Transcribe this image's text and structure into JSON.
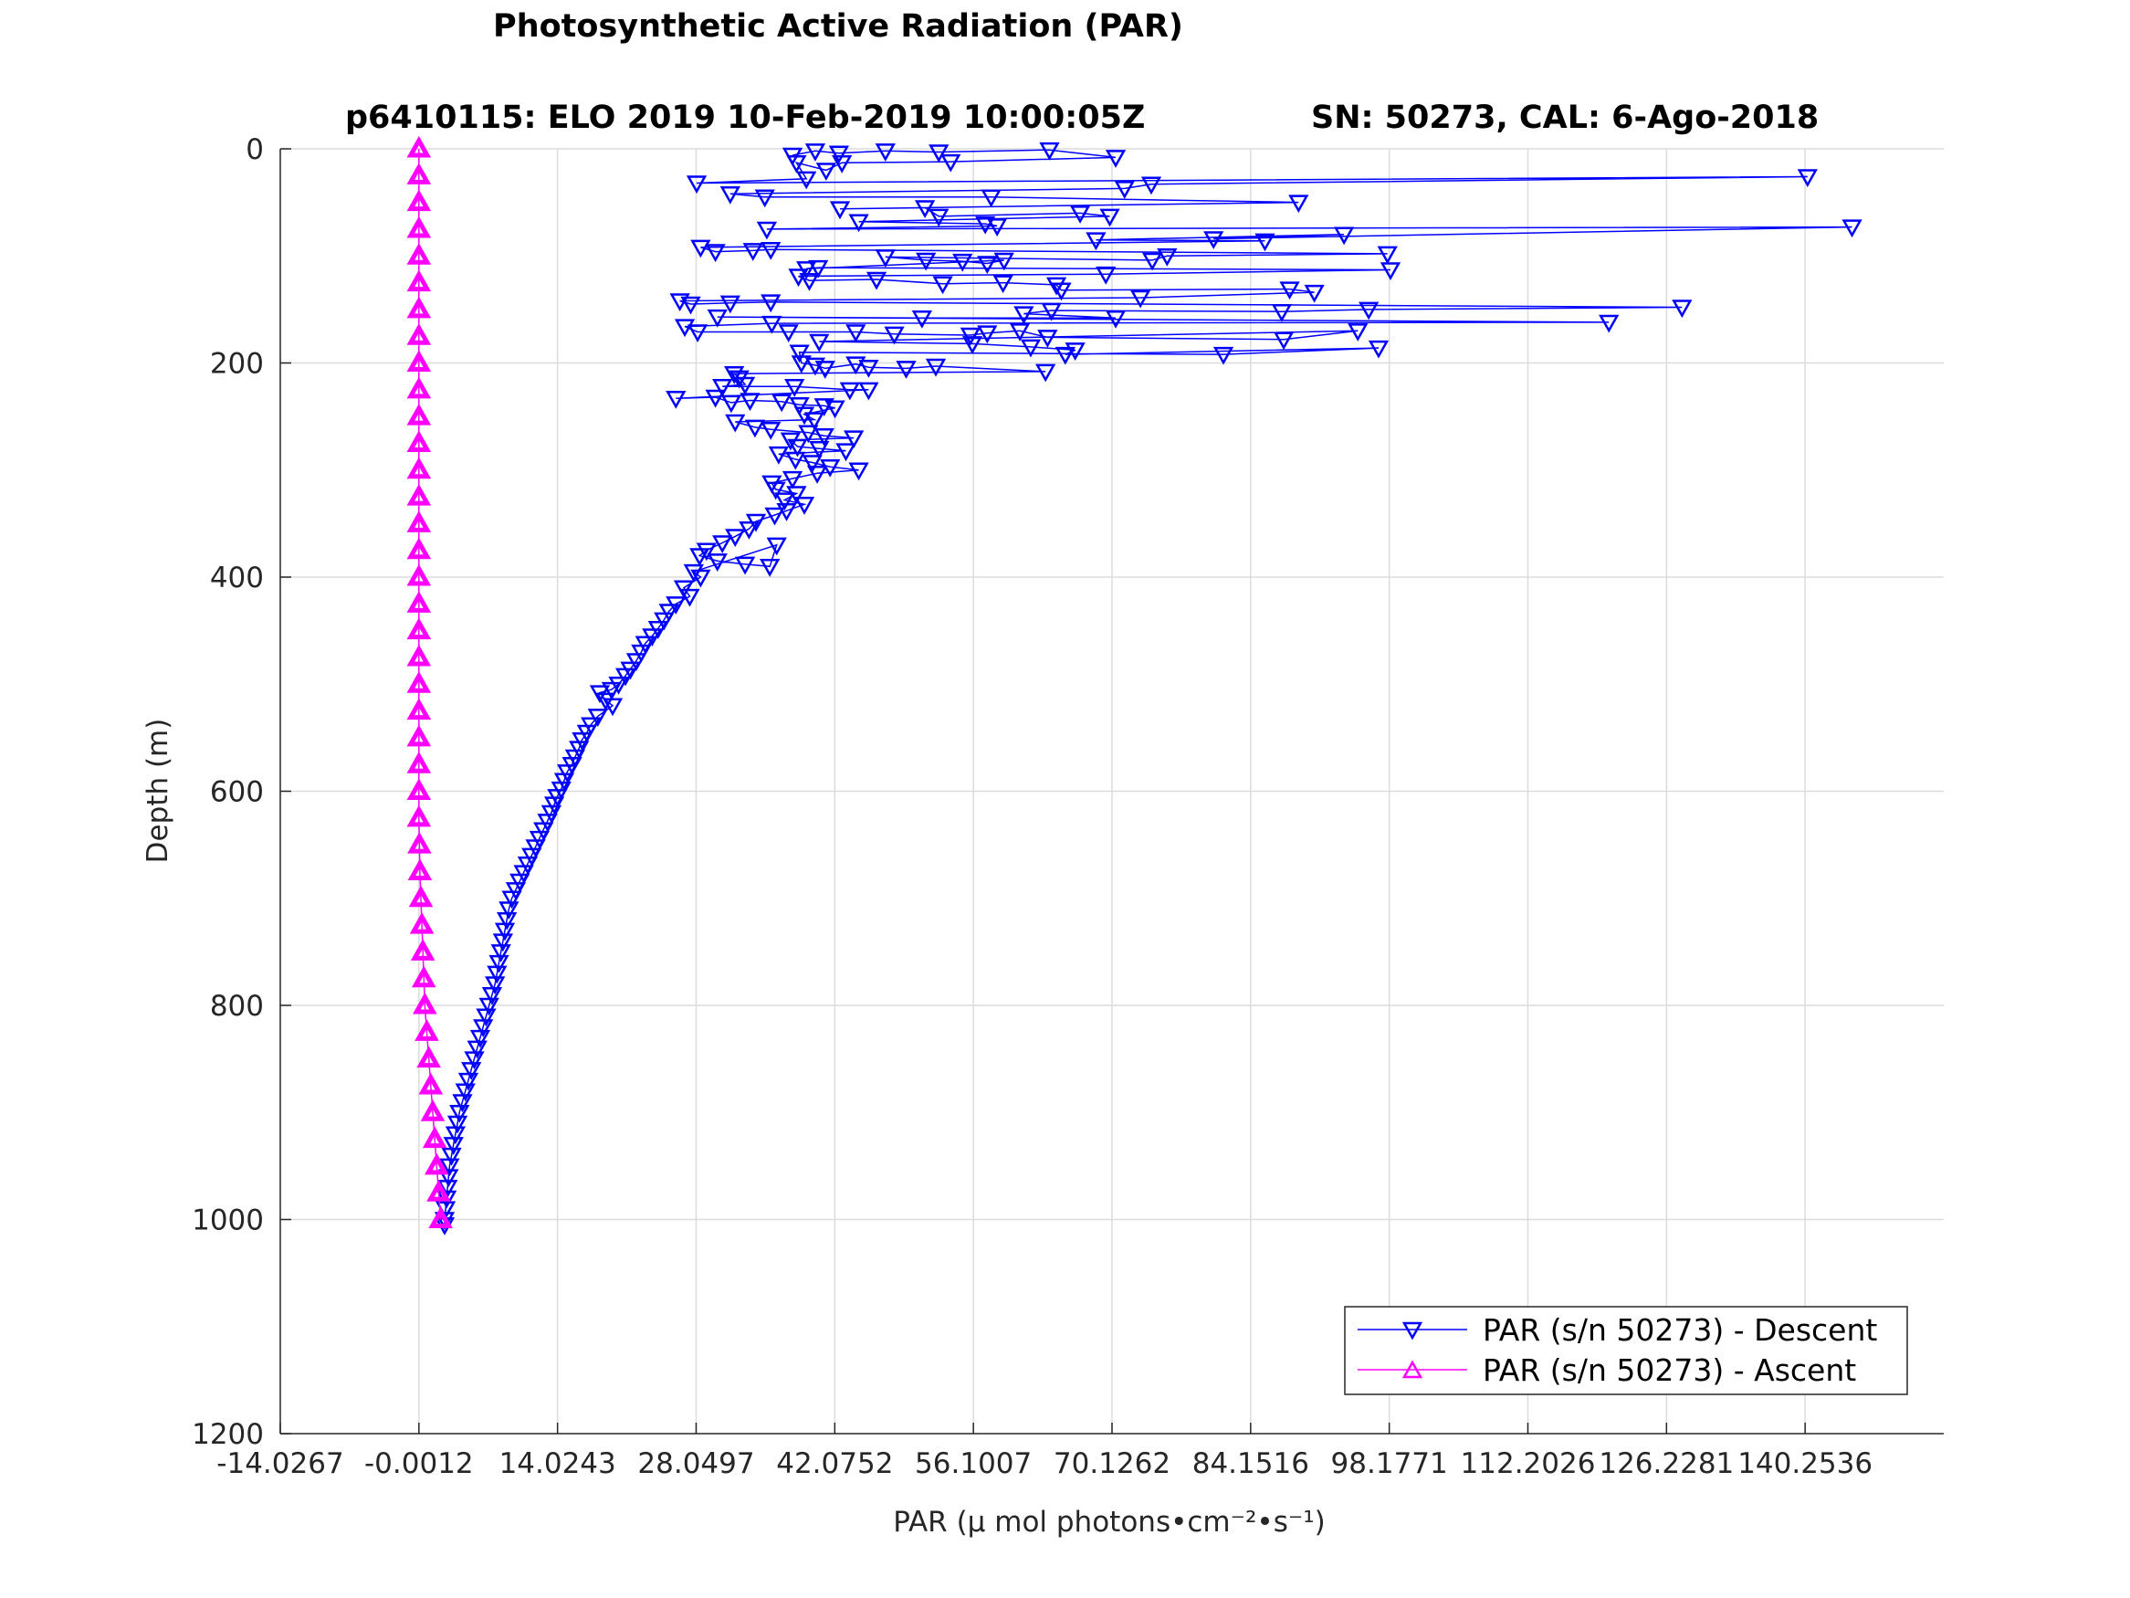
{
  "chart_data": {
    "type": "line",
    "title": "Photosynthetic Active Radiation (PAR)",
    "subtitle_left": "p6410115: ELO 2019 10-Feb-2019 10:00:05Z",
    "subtitle_right": "SN: 50273, CAL: 6-Ago-2018",
    "xlabel": "PAR (μ mol photons•cm⁻²•s⁻¹)",
    "ylabel": "Depth (m)",
    "xlim": [
      -14.0267,
      154.28
    ],
    "ylim": [
      0,
      1200
    ],
    "y_reversed": true,
    "grid": true,
    "x_ticks": [
      "-14.0267",
      "-0.0012",
      "14.0243",
      "28.0497",
      "42.0752",
      "56.1007",
      "70.1262",
      "84.1516",
      "98.1771",
      "112.2026",
      "126.2281",
      "140.2536"
    ],
    "y_ticks": [
      "0",
      "200",
      "400",
      "600",
      "800",
      "1000",
      "1200"
    ],
    "legend_position": "bottom-right",
    "series": [
      {
        "name": "PAR (s/n 50273) - Descent",
        "color": "#0000ff",
        "marker": "triangle-down",
        "points": [
          [
            37.8,
            6
          ],
          [
            40.1,
            2
          ],
          [
            42.5,
            4
          ],
          [
            47.2,
            2
          ],
          [
            52.6,
            3
          ],
          [
            63.8,
            1
          ],
          [
            70.5,
            8
          ],
          [
            53.8,
            12
          ],
          [
            42.8,
            13
          ],
          [
            41.2,
            20
          ],
          [
            38.2,
            13
          ],
          [
            39.2,
            28
          ],
          [
            28.1,
            32
          ],
          [
            140.5,
            26
          ],
          [
            74.1,
            33
          ],
          [
            71.4,
            37
          ],
          [
            31.5,
            42
          ],
          [
            35.0,
            45
          ],
          [
            57.9,
            45
          ],
          [
            89.0,
            50
          ],
          [
            42.6,
            56
          ],
          [
            51.2,
            55
          ],
          [
            52.6,
            63
          ],
          [
            66.9,
            60
          ],
          [
            69.9,
            63
          ],
          [
            44.5,
            68
          ],
          [
            57.3,
            70
          ],
          [
            58.5,
            72
          ],
          [
            35.2,
            75
          ],
          [
            145.0,
            73
          ],
          [
            80.4,
            84
          ],
          [
            93.6,
            80
          ],
          [
            68.5,
            85
          ],
          [
            85.6,
            86
          ],
          [
            28.5,
            92
          ],
          [
            30.0,
            96
          ],
          [
            33.8,
            95
          ],
          [
            35.6,
            94
          ],
          [
            98.0,
            98
          ],
          [
            75.7,
            100
          ],
          [
            74.2,
            104
          ],
          [
            47.2,
            101
          ],
          [
            51.3,
            104
          ],
          [
            55.0,
            105
          ],
          [
            57.5,
            107
          ],
          [
            59.2,
            104
          ],
          [
            39.2,
            112
          ],
          [
            40.4,
            111
          ],
          [
            98.3,
            113
          ],
          [
            69.5,
            117
          ],
          [
            38.4,
            119
          ],
          [
            39.5,
            123
          ],
          [
            46.3,
            122
          ],
          [
            53.0,
            126
          ],
          [
            59.1,
            125
          ],
          [
            64.5,
            127
          ],
          [
            65.0,
            132
          ],
          [
            88.1,
            131
          ],
          [
            90.6,
            134
          ],
          [
            73.0,
            139
          ],
          [
            26.4,
            142
          ],
          [
            27.5,
            145
          ],
          [
            31.5,
            144
          ],
          [
            35.6,
            143
          ],
          [
            127.8,
            148
          ],
          [
            96.1,
            150
          ],
          [
            87.3,
            152
          ],
          [
            64.0,
            151
          ],
          [
            61.2,
            154
          ],
          [
            70.5,
            158
          ],
          [
            50.9,
            158
          ],
          [
            30.2,
            157
          ],
          [
            120.4,
            162
          ],
          [
            35.7,
            163
          ],
          [
            26.9,
            166
          ],
          [
            28.2,
            171
          ],
          [
            37.4,
            171
          ],
          [
            44.2,
            171
          ],
          [
            48.1,
            173
          ],
          [
            55.8,
            174
          ],
          [
            57.5,
            172
          ],
          [
            60.8,
            170
          ],
          [
            63.6,
            176
          ],
          [
            87.5,
            178
          ],
          [
            95.0,
            170
          ],
          [
            40.5,
            180
          ],
          [
            56.0,
            182
          ],
          [
            61.9,
            185
          ],
          [
            66.4,
            188
          ],
          [
            65.4,
            192
          ],
          [
            97.1,
            186
          ],
          [
            81.4,
            192
          ],
          [
            38.5,
            190
          ],
          [
            38.7,
            200
          ],
          [
            40.1,
            202
          ],
          [
            41.1,
            205
          ],
          [
            44.2,
            201
          ],
          [
            45.5,
            204
          ],
          [
            49.3,
            205
          ],
          [
            52.3,
            203
          ],
          [
            63.4,
            208
          ],
          [
            31.9,
            210
          ],
          [
            32.4,
            214
          ],
          [
            33.0,
            220
          ],
          [
            30.7,
            222
          ],
          [
            38.0,
            222
          ],
          [
            43.6,
            225
          ],
          [
            45.5,
            225
          ],
          [
            26.0,
            233
          ],
          [
            30.0,
            232
          ],
          [
            31.6,
            237
          ],
          [
            33.5,
            235
          ],
          [
            36.7,
            236
          ],
          [
            38.5,
            239
          ],
          [
            41.0,
            240
          ],
          [
            42.1,
            242
          ],
          [
            39.0,
            248
          ],
          [
            40.0,
            253
          ],
          [
            32.0,
            255
          ],
          [
            34.0,
            260
          ],
          [
            35.6,
            262
          ],
          [
            39.4,
            265
          ],
          [
            41.0,
            268
          ],
          [
            44.0,
            270
          ],
          [
            37.6,
            272
          ],
          [
            38.3,
            278
          ],
          [
            40.5,
            280
          ],
          [
            43.2,
            282
          ],
          [
            36.4,
            285
          ],
          [
            38.1,
            290
          ],
          [
            39.8,
            293
          ],
          [
            41.6,
            297
          ],
          [
            44.5,
            300
          ],
          [
            40.3,
            303
          ],
          [
            37.8,
            308
          ],
          [
            35.7,
            312
          ],
          [
            36.1,
            318
          ],
          [
            38.2,
            322
          ],
          [
            37.0,
            328
          ],
          [
            39.0,
            332
          ],
          [
            37.2,
            338
          ],
          [
            36.0,
            342
          ],
          [
            34.1,
            348
          ],
          [
            33.4,
            355
          ],
          [
            32.0,
            362
          ],
          [
            30.7,
            368
          ],
          [
            29.1,
            375
          ],
          [
            28.4,
            380
          ],
          [
            30.2,
            385
          ],
          [
            33.0,
            388
          ],
          [
            35.5,
            390
          ],
          [
            36.2,
            370
          ],
          [
            27.8,
            395
          ],
          [
            28.5,
            400
          ],
          [
            26.8,
            410
          ],
          [
            27.4,
            418
          ],
          [
            26.0,
            425
          ],
          [
            25.3,
            432
          ],
          [
            24.8,
            440
          ],
          [
            24.2,
            448
          ],
          [
            23.6,
            455
          ],
          [
            22.9,
            462
          ],
          [
            22.5,
            470
          ],
          [
            22.0,
            478
          ],
          [
            21.4,
            486
          ],
          [
            20.9,
            492
          ],
          [
            20.2,
            500
          ],
          [
            19.5,
            505
          ],
          [
            18.3,
            508
          ],
          [
            18.9,
            515
          ],
          [
            19.6,
            520
          ],
          [
            18.1,
            530
          ],
          [
            17.4,
            538
          ],
          [
            17.0,
            545
          ],
          [
            16.5,
            552
          ],
          [
            16.2,
            560
          ],
          [
            15.8,
            568
          ],
          [
            15.5,
            575
          ],
          [
            15.0,
            582
          ],
          [
            14.7,
            590
          ],
          [
            14.4,
            598
          ],
          [
            14.0,
            605
          ],
          [
            13.7,
            612
          ],
          [
            13.4,
            620
          ],
          [
            13.0,
            628
          ],
          [
            12.6,
            636
          ],
          [
            12.2,
            644
          ],
          [
            11.8,
            652
          ],
          [
            11.4,
            660
          ],
          [
            11.0,
            668
          ],
          [
            10.6,
            676
          ],
          [
            10.2,
            684
          ],
          [
            9.8,
            692
          ],
          [
            9.4,
            700
          ],
          [
            9.1,
            710
          ],
          [
            8.9,
            720
          ],
          [
            8.7,
            730
          ],
          [
            8.5,
            740
          ],
          [
            8.3,
            750
          ],
          [
            8.1,
            760
          ],
          [
            7.9,
            770
          ],
          [
            7.7,
            780
          ],
          [
            7.4,
            790
          ],
          [
            7.1,
            800
          ],
          [
            6.8,
            810
          ],
          [
            6.5,
            820
          ],
          [
            6.2,
            830
          ],
          [
            5.9,
            840
          ],
          [
            5.6,
            850
          ],
          [
            5.3,
            860
          ],
          [
            5.0,
            870
          ],
          [
            4.7,
            880
          ],
          [
            4.4,
            890
          ],
          [
            4.1,
            900
          ],
          [
            3.9,
            910
          ],
          [
            3.7,
            920
          ],
          [
            3.5,
            930
          ],
          [
            3.3,
            940
          ],
          [
            3.1,
            950
          ],
          [
            3.0,
            960
          ],
          [
            2.9,
            970
          ],
          [
            2.8,
            980
          ],
          [
            2.7,
            990
          ],
          [
            2.6,
            1000
          ],
          [
            2.6,
            1005
          ]
        ]
      },
      {
        "name": "PAR (s/n 50273) - Ascent",
        "color": "#ff00ff",
        "marker": "triangle-up",
        "points": [
          [
            2.2,
            1000
          ],
          [
            2.0,
            975
          ],
          [
            1.8,
            950
          ],
          [
            1.6,
            925
          ],
          [
            1.4,
            900
          ],
          [
            1.2,
            875
          ],
          [
            1.0,
            850
          ],
          [
            0.8,
            825
          ],
          [
            0.6,
            800
          ],
          [
            0.5,
            775
          ],
          [
            0.4,
            750
          ],
          [
            0.3,
            725
          ],
          [
            0.2,
            700
          ],
          [
            0.1,
            675
          ],
          [
            0.05,
            650
          ],
          [
            0.0,
            625
          ],
          [
            0.0,
            600
          ],
          [
            0.0,
            575
          ],
          [
            0.0,
            550
          ],
          [
            0.0,
            525
          ],
          [
            0.0,
            500
          ],
          [
            0.0,
            475
          ],
          [
            0.0,
            450
          ],
          [
            0.0,
            425
          ],
          [
            0.0,
            400
          ],
          [
            0.0,
            375
          ],
          [
            0.0,
            350
          ],
          [
            0.0,
            325
          ],
          [
            0.0,
            300
          ],
          [
            0.0,
            275
          ],
          [
            0.0,
            250
          ],
          [
            0.0,
            225
          ],
          [
            0.0,
            200
          ],
          [
            0.0,
            175
          ],
          [
            0.0,
            150
          ],
          [
            0.0,
            125
          ],
          [
            0.0,
            100
          ],
          [
            0.0,
            75
          ],
          [
            0.0,
            50
          ],
          [
            0.0,
            25
          ],
          [
            0.0,
            0
          ]
        ]
      }
    ]
  }
}
